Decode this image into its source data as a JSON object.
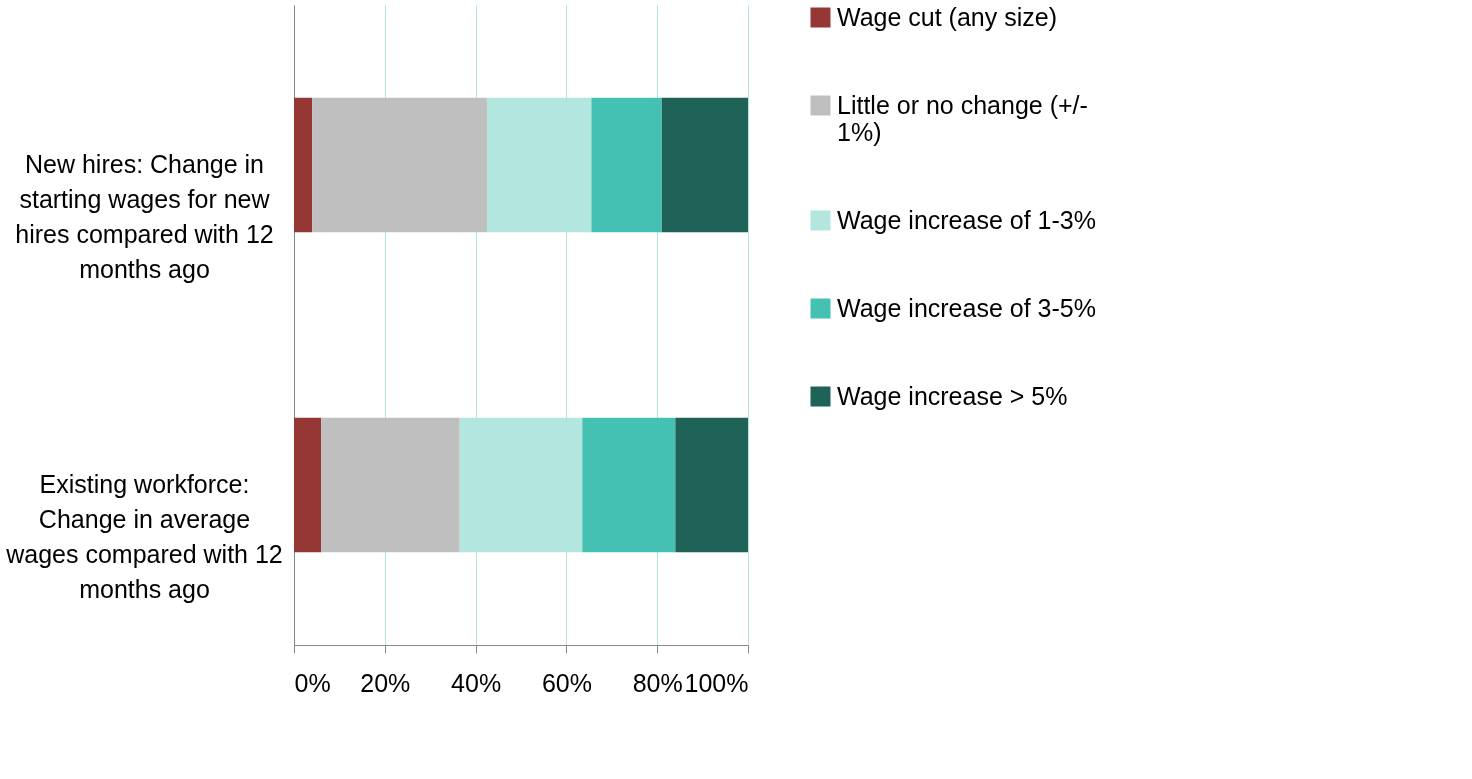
{
  "chart_data": {
    "type": "bar",
    "orientation": "horizontal",
    "stacked": true,
    "categories": [
      "New hires: Change in starting wages for new hires compared with 12 months ago",
      "Existing workforce: Change in average wages compared with 12 months ago"
    ],
    "series": [
      {
        "name": "Wage cut (any size)",
        "color": "#953735",
        "values": [
          4,
          6
        ]
      },
      {
        "name": "Little or no change (+/- 1%)",
        "color": "#bfbfbf",
        "values": [
          38.5,
          30.5
        ]
      },
      {
        "name": "Wage increase of 1-3%",
        "color": "#b3e6df",
        "values": [
          23,
          27
        ]
      },
      {
        "name": "Wage increase of 3-5%",
        "color": "#45c1b3",
        "values": [
          15.5,
          20.5
        ]
      },
      {
        "name": "Wage increase > 5%",
        "color": "#1f6358",
        "values": [
          19,
          16
        ]
      }
    ],
    "xlim": [
      0,
      100
    ],
    "xticks": [
      {
        "value": 0,
        "label": "0%"
      },
      {
        "value": 20,
        "label": "20%"
      },
      {
        "value": 40,
        "label": "40%"
      },
      {
        "value": 60,
        "label": "60%"
      },
      {
        "value": 80,
        "label": "80%"
      },
      {
        "value": 100,
        "label": "100%"
      }
    ],
    "grid": "x",
    "legend": "right"
  }
}
